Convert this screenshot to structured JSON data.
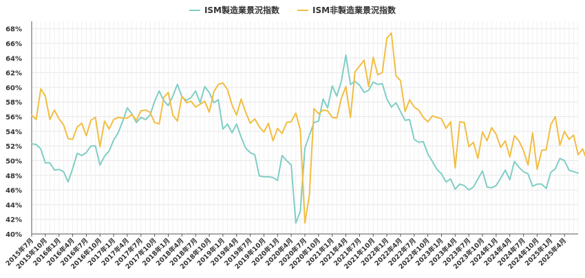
{
  "chart_data": {
    "type": "line",
    "legend_position": "top",
    "grid": true,
    "ylim": [
      40,
      69
    ],
    "y_ticks": [
      "40%",
      "42%",
      "44%",
      "46%",
      "48%",
      "50%",
      "52%",
      "54%",
      "56%",
      "58%",
      "60%",
      "62%",
      "64%",
      "66%",
      "68%"
    ],
    "x_tick_labels": [
      "2015年7月",
      "2015年10月",
      "2016年1月",
      "2016年4月",
      "2016年7月",
      "2016年10月",
      "2017年1月",
      "2017年4月",
      "2017年7月",
      "2017年10月",
      "2018年1月",
      "2018年4月",
      "2018年7月",
      "2018年10月",
      "2019年1月",
      "2019年4月",
      "2019年7月",
      "2019年10月",
      "2020年1月",
      "2020年4月",
      "2020年7月",
      "2020年10月",
      "2021年1月",
      "2021年4月",
      "2021年7月",
      "2021年10月",
      "2022年1月",
      "2022年4月",
      "2022年7月",
      "2022年10月",
      "2023年1月",
      "2023年4月",
      "2023年7月",
      "2023年10月",
      "2024年1月",
      "2024年4月",
      "2024年7月",
      "2024年10月",
      "2025年1月",
      "2025年4月"
    ],
    "series": [
      {
        "name": "ISM製造業景況指数",
        "color": "#7ecdc4",
        "values": [
          52.3,
          52.2,
          51.6,
          49.7,
          49.7,
          48.7,
          48.8,
          48.5,
          47.1,
          48.9,
          51.0,
          50.7,
          51.1,
          52.0,
          52.0,
          49.4,
          50.6,
          51.3,
          52.8,
          53.8,
          55.4,
          57.2,
          56.4,
          55.2,
          55.9,
          55.6,
          56.2,
          58.1,
          59.5,
          58.2,
          57.5,
          58.8,
          60.4,
          58.7,
          58.2,
          58.6,
          59.5,
          57.9,
          60.1,
          59.3,
          57.9,
          58.3,
          54.3,
          55.0,
          53.8,
          55.0,
          53.2,
          51.7,
          51.1,
          50.8,
          47.9,
          47.8,
          47.8,
          47.7,
          47.3,
          50.7,
          50.0,
          49.4,
          41.5,
          43.1,
          51.7,
          53.5,
          55.2,
          55.4,
          58.4,
          57.2,
          60.2,
          58.8,
          60.8,
          64.4,
          60.4,
          60.8,
          60.3,
          59.3,
          59.6,
          60.7,
          60.4,
          60.5,
          58.4,
          57.3,
          57.9,
          56.7,
          55.5,
          55.6,
          52.9,
          52.5,
          52.6,
          50.9,
          49.9,
          48.8,
          48.2,
          47.1,
          47.5,
          46.1,
          46.8,
          46.6,
          46.0,
          46.4,
          47.5,
          48.6,
          46.4,
          46.3,
          46.6,
          47.6,
          48.7,
          47.4,
          49.9,
          49.1,
          48.5,
          48.2,
          46.5,
          46.8,
          46.8,
          46.2,
          48.4,
          48.9,
          50.3,
          50.0,
          48.7,
          48.5,
          48.3
        ]
      },
      {
        "name": "ISM非製造業景況指数",
        "color": "#f2bd3f",
        "values": [
          56.2,
          55.6,
          59.8,
          58.8,
          55.6,
          56.9,
          55.7,
          54.9,
          53.0,
          52.9,
          54.6,
          55.1,
          53.4,
          55.5,
          55.9,
          51.9,
          55.4,
          54.3,
          55.6,
          55.9,
          55.8,
          55.8,
          56.3,
          55.5,
          56.8,
          56.9,
          56.6,
          55.2,
          55.0,
          58.6,
          59.3,
          56.2,
          55.4,
          58.8,
          57.9,
          58.1,
          57.3,
          57.7,
          58.1,
          56.6,
          59.4,
          60.4,
          60.6,
          59.7,
          57.6,
          56.2,
          58.4,
          56.6,
          55.1,
          55.7,
          54.6,
          53.9,
          55.1,
          52.7,
          54.4,
          53.7,
          55.2,
          55.3,
          56.5,
          54.2,
          41.5,
          45.4,
          57.1,
          56.4,
          56.9,
          56.8,
          55.9,
          55.8,
          58.5,
          60.1,
          55.9,
          62.1,
          62.9,
          63.7,
          60.1,
          64.1,
          61.7,
          62.0,
          66.7,
          67.4,
          61.6,
          60.9,
          56.7,
          58.3,
          57.3,
          56.9,
          55.9,
          55.3,
          56.1,
          55.9,
          55.7,
          54.4,
          55.3,
          49.0,
          55.3,
          55.2,
          51.9,
          52.5,
          50.3,
          53.9,
          52.7,
          54.5,
          53.6,
          51.8,
          52.7,
          50.5,
          53.4,
          52.7,
          51.4,
          49.4,
          53.8,
          48.8,
          51.4,
          51.5,
          54.9,
          56.0,
          52.1,
          54.0,
          52.9,
          53.5,
          50.8,
          51.6,
          49.9
        ]
      }
    ]
  }
}
